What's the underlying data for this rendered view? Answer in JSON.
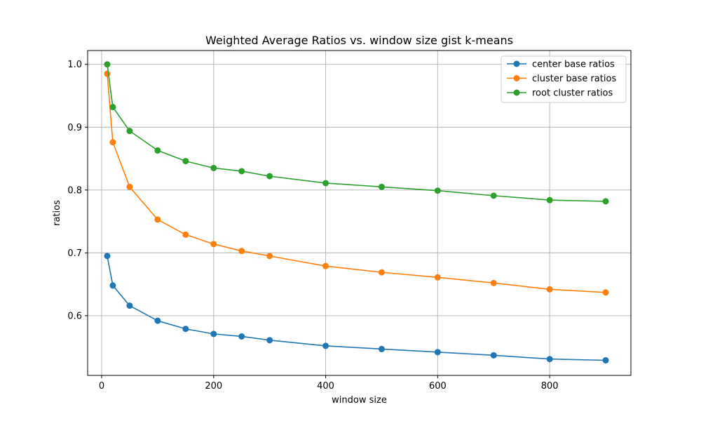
{
  "chart_data": {
    "type": "line",
    "title": "Weighted Average Ratios vs. window size gist k-means",
    "xlabel": "window size",
    "ylabel": "ratios",
    "xlim": [
      -25,
      945
    ],
    "ylim": [
      0.505,
      1.022
    ],
    "x_ticks": [
      0,
      200,
      400,
      600,
      800
    ],
    "x_tick_labels": [
      "0",
      "200",
      "400",
      "600",
      "800"
    ],
    "y_ticks": [
      0.6,
      0.7,
      0.8,
      0.9,
      1.0
    ],
    "y_tick_labels": [
      "0.6",
      "0.7",
      "0.8",
      "0.9",
      "1.0"
    ],
    "grid": true,
    "legend_position": "upper right",
    "x": [
      10,
      20,
      50,
      100,
      150,
      200,
      250,
      300,
      400,
      500,
      600,
      700,
      800,
      900
    ],
    "series": [
      {
        "name": "center base ratios",
        "color": "#1f77b4",
        "values": [
          0.695,
          0.648,
          0.616,
          0.592,
          0.579,
          0.571,
          0.567,
          0.561,
          0.552,
          0.547,
          0.542,
          0.537,
          0.531,
          0.529
        ]
      },
      {
        "name": "cluster base ratios",
        "color": "#ff7f0e",
        "values": [
          0.985,
          0.876,
          0.805,
          0.753,
          0.729,
          0.714,
          0.703,
          0.695,
          0.679,
          0.669,
          0.661,
          0.652,
          0.642,
          0.637
        ]
      },
      {
        "name": "root cluster ratios",
        "color": "#2ca02c",
        "values": [
          1.0,
          0.932,
          0.894,
          0.863,
          0.846,
          0.835,
          0.83,
          0.822,
          0.811,
          0.805,
          0.799,
          0.791,
          0.784,
          0.782
        ]
      }
    ]
  }
}
